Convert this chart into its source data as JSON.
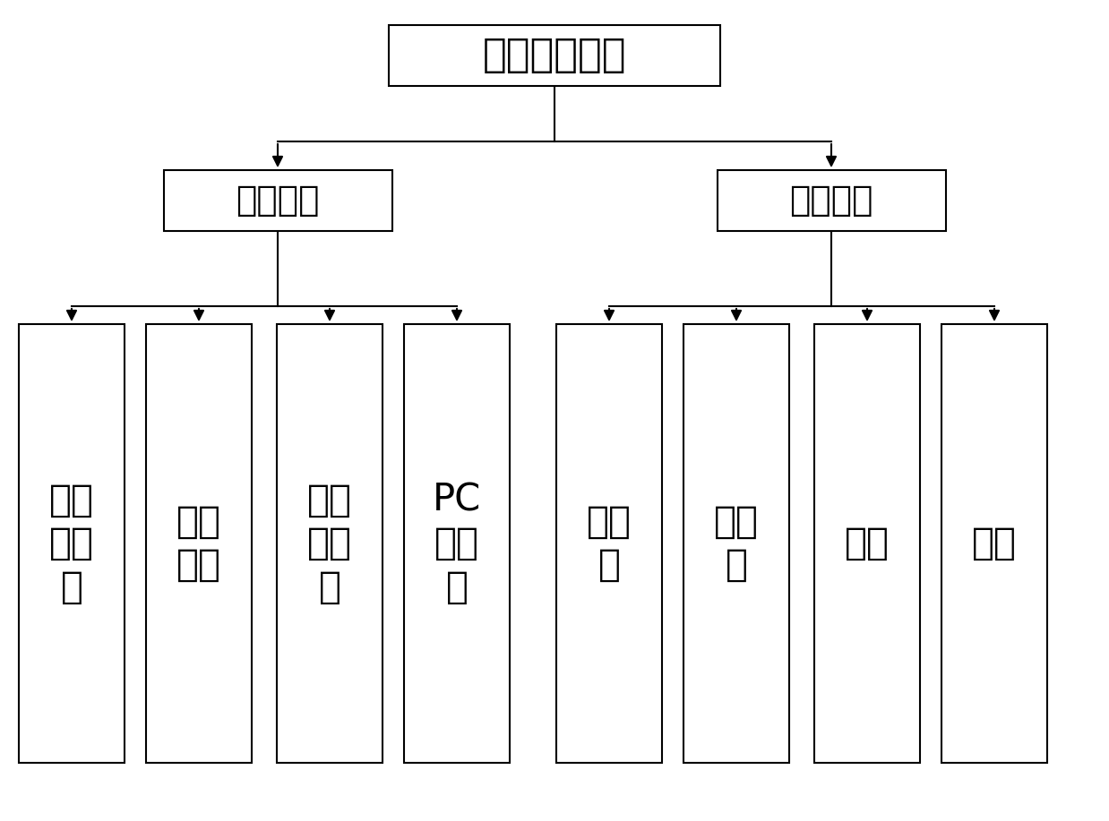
{
  "title": "精准喷雾装置",
  "level1_left": "检测部分",
  "level1_right": "执行部分",
  "level2_left": [
    "近红外光源",
    "硅光电池",
    "数据采集卡",
    "PC上位机"
  ],
  "level2_right": [
    "单片机",
    "变频器",
    "水泵",
    "喷头"
  ],
  "level2_left_text": [
    "近红\n外光\n源",
    "硅光\n电池",
    "数据\n采集\n卡",
    "PC\n上位\n机"
  ],
  "level2_right_text": [
    "单片\n机",
    "变频\n器",
    "水泵",
    "喷头"
  ],
  "bg_color": "#ffffff",
  "box_edge_color": "#000000",
  "text_color": "#000000",
  "line_color": "#000000",
  "font_size_title": 32,
  "font_size_level1": 28,
  "font_size_level2": 30,
  "figsize": [
    12.38,
    9.17
  ],
  "dpi": 100
}
